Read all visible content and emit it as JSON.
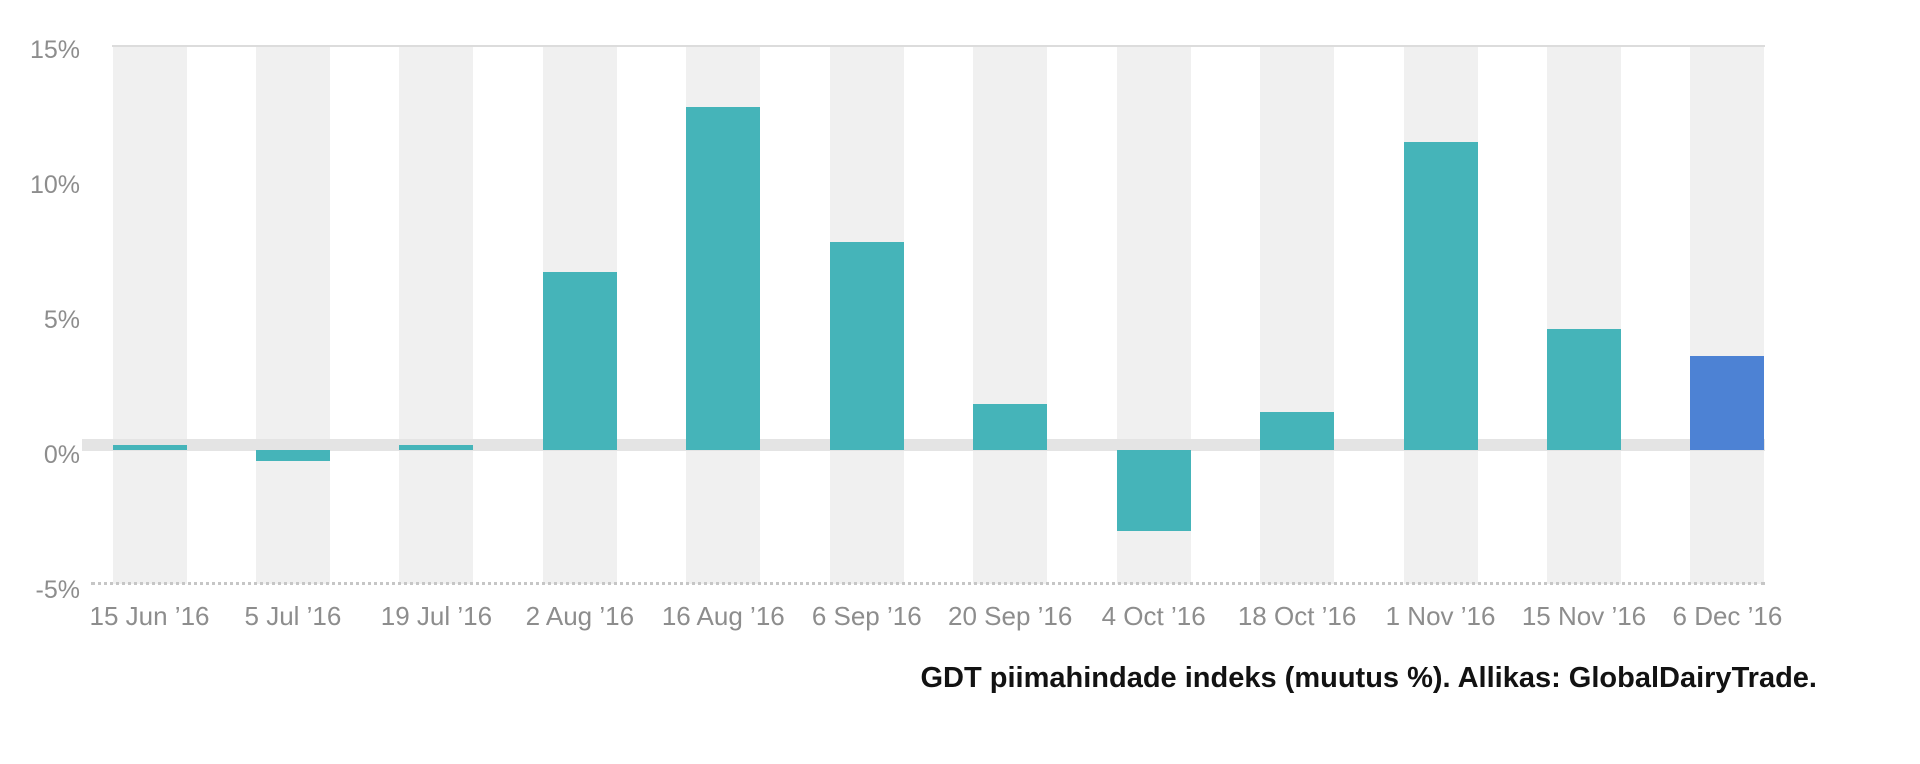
{
  "page": {
    "background": "#ffffff"
  },
  "chart_data": {
    "type": "bar",
    "title": "",
    "caption": "GDT piimahindade indeks (muutus %). Allikas: GlobalDairyTrade.",
    "series_name": "GDT piimahindade indeksi muutus (%)",
    "categories": [
      "15 Jun ’16",
      "5 Jul ’16",
      "19 Jul ’16",
      "2 Aug ’16",
      "16 Aug ’16",
      "6 Sep ’16",
      "20 Sep ’16",
      "4 Oct ’16",
      "18 Oct ’16",
      "1 Nov ’16",
      "15 Nov ’16",
      "6 Dec ’16"
    ],
    "values": [
      0.2,
      -0.4,
      0.2,
      6.6,
      12.7,
      7.7,
      1.7,
      -3.0,
      1.4,
      11.4,
      4.5,
      3.5
    ],
    "highlight_index": 11,
    "xlabel": "",
    "ylabel": "",
    "ylim": [
      -5,
      15
    ],
    "y_ticks": [
      {
        "label": "15%",
        "value": 15
      },
      {
        "label": "10%",
        "value": 10
      },
      {
        "label": "5%",
        "value": 5
      },
      {
        "label": "0%",
        "value": 0
      },
      {
        "label": "-5%",
        "value": -5
      }
    ],
    "legend_position": "none",
    "grid": {
      "column_bands": true,
      "top_border": true,
      "zero_band": true,
      "bottom_axis_dashed": true,
      "horizontal_gridlines": false
    },
    "colors": {
      "bar": "#45b4b9",
      "bar_highlight": "#4d82d4",
      "column_band": "#f0f0f0",
      "zero_band": "#e4e4e4",
      "top_border": "#dcdcdc",
      "axis_dashed": "#c6c6c6",
      "tick_text": "#8d8d8d",
      "caption_text": "#121212"
    }
  }
}
